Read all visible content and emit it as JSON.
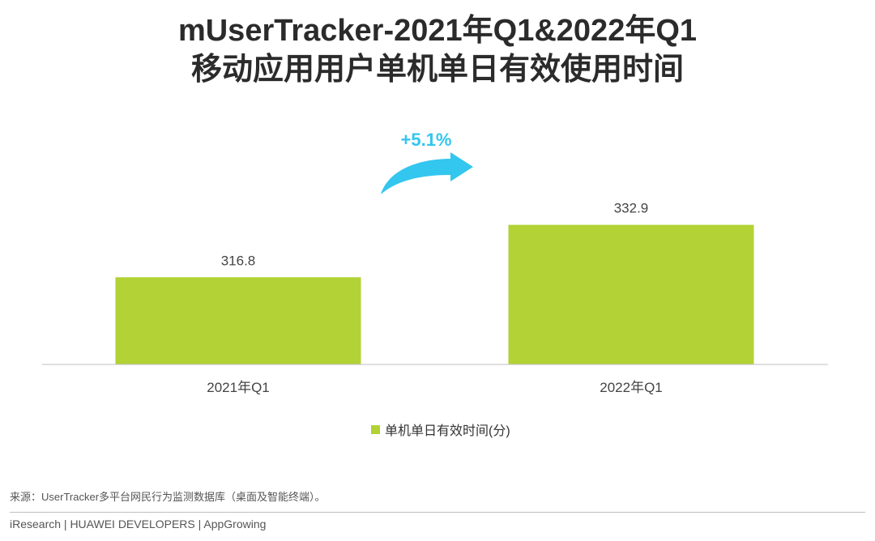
{
  "title": {
    "line1": "mUserTracker-2021年Q1&2022年Q1",
    "line2": "移动应用用户单机单日有效使用时间"
  },
  "chart_data": {
    "type": "bar",
    "categories": [
      "2021年Q1",
      "2022年Q1"
    ],
    "series": [
      {
        "name": "单机单日有效时间(分)",
        "values": [
          316.8,
          332.9
        ]
      }
    ],
    "value_labels": [
      "316.8",
      "332.9"
    ],
    "ylim": [
      290,
      345
    ],
    "grid": false,
    "legend_position": "bottom-center",
    "annotation": "+5.1%",
    "colors": {
      "bar": "#b2d235",
      "arrow": "#33c6ee",
      "annotation": "#33c6ee",
      "axis": "#bfbfbf"
    }
  },
  "source": "来源：UserTracker多平台网民行为监测数据库（桌面及智能终端）。",
  "footer": "iResearch | HUAWEI DEVELOPERS | AppGrowing"
}
